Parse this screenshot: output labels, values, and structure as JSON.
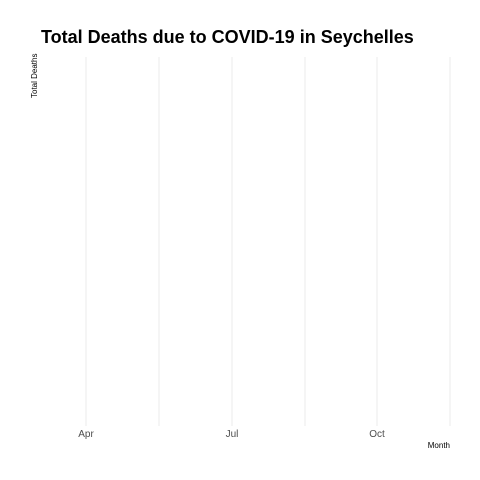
{
  "chart_data": {
    "type": "line",
    "title": "Total Deaths due to COVID-19 in Seychelles",
    "xlabel": "Month",
    "ylabel": "Total Deaths",
    "x_ticks": [
      "Apr",
      "Jul",
      "Oct"
    ],
    "series": [],
    "grid": true,
    "grid_axis": "x",
    "legend": "none"
  }
}
